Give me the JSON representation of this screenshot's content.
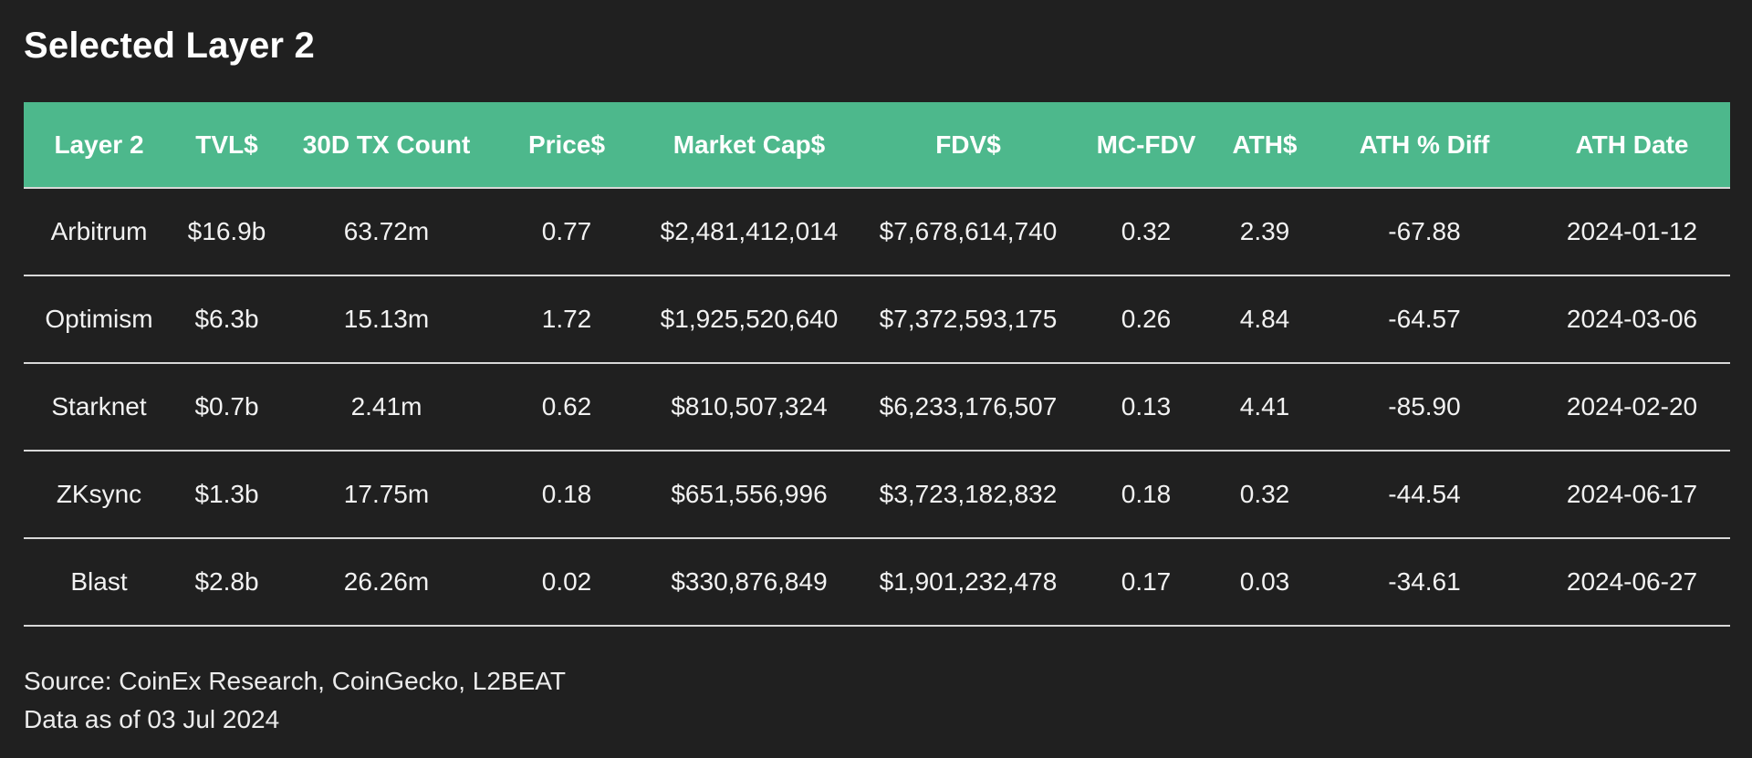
{
  "title": "Selected Layer 2",
  "chart_data": {
    "type": "table",
    "title": "Selected Layer 2",
    "columns": [
      "Layer 2",
      "TVL$",
      "30D TX Count",
      "Price$",
      "Market Cap$",
      "FDV$",
      "MC-FDV",
      "ATH$",
      "ATH % Diff",
      "ATH Date"
    ],
    "rows": [
      [
        "Arbitrum",
        "$16.9b",
        "63.72m",
        "0.77",
        "$2,481,412,014",
        "$7,678,614,740",
        "0.32",
        "2.39",
        "-67.88",
        "2024-01-12"
      ],
      [
        "Optimism",
        "$6.3b",
        "15.13m",
        "1.72",
        "$1,925,520,640",
        "$7,372,593,175",
        "0.26",
        "4.84",
        "-64.57",
        "2024-03-06"
      ],
      [
        "Starknet",
        "$0.7b",
        "2.41m",
        "0.62",
        "$810,507,324",
        "$6,233,176,507",
        "0.13",
        "4.41",
        "-85.90",
        "2024-02-20"
      ],
      [
        "ZKsync",
        "$1.3b",
        "17.75m",
        "0.18",
        "$651,556,996",
        "$3,723,182,832",
        "0.18",
        "0.32",
        "-44.54",
        "2024-06-17"
      ],
      [
        "Blast",
        "$2.8b",
        "26.26m",
        "0.02",
        "$330,876,849",
        "$1,901,232,478",
        "0.17",
        "0.03",
        "-34.61",
        "2024-06-27"
      ]
    ],
    "header_color": "#4db88c",
    "background_color": "#202020"
  },
  "footer": {
    "source": "Source: CoinEx Research, CoinGecko, L2BEAT",
    "date": "Data as of 03 Jul 2024"
  }
}
